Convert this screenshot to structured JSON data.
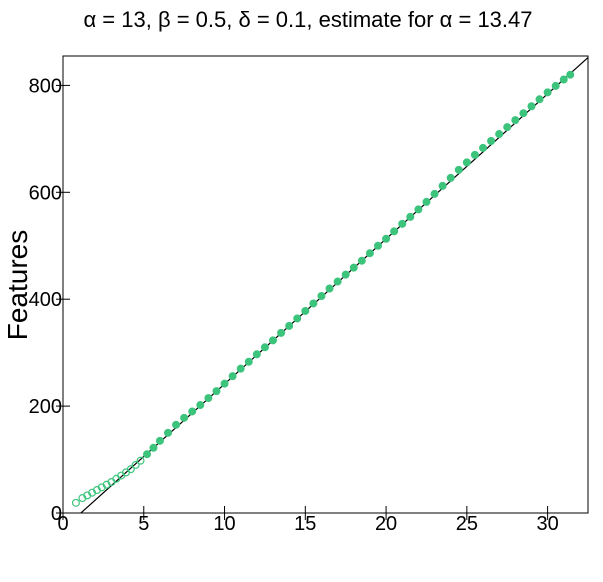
{
  "chart_data": {
    "type": "scatter",
    "title": "α = 13, β = 0.5, δ = 0.1, estimate for α = 13.47",
    "xlabel": "",
    "ylabel": "Features",
    "xlim": [
      0,
      32.5
    ],
    "ylim": [
      0,
      855
    ],
    "x_ticks": [
      0,
      5,
      10,
      15,
      20,
      25,
      30
    ],
    "y_ticks": [
      0,
      200,
      400,
      600,
      800
    ],
    "grid": false,
    "legend": "none",
    "point_color": "#3cc47c",
    "line_color": "#000000",
    "reference_line": {
      "x": [
        0,
        32.5
      ],
      "y": [
        -30,
        852
      ]
    },
    "series": [
      {
        "values": [
          [
            0.8,
            19
          ],
          [
            1.2,
            28
          ],
          [
            1.5,
            33
          ],
          [
            1.8,
            38
          ],
          [
            2.1,
            43
          ],
          [
            2.4,
            48
          ],
          [
            2.7,
            53
          ],
          [
            3.0,
            58
          ],
          [
            3.3,
            64
          ],
          [
            3.6,
            70
          ],
          [
            3.9,
            76
          ],
          [
            4.2,
            82
          ],
          [
            4.5,
            90
          ],
          [
            4.8,
            98
          ],
          [
            5.2,
            110
          ],
          [
            5.6,
            122
          ],
          [
            6.0,
            135
          ],
          [
            6.5,
            150
          ],
          [
            7.0,
            165
          ],
          [
            7.5,
            178
          ],
          [
            8.0,
            190
          ],
          [
            8.5,
            202
          ],
          [
            9.0,
            215
          ],
          [
            9.5,
            228
          ],
          [
            10.0,
            242
          ],
          [
            10.5,
            256
          ],
          [
            11.0,
            270
          ],
          [
            11.5,
            283
          ],
          [
            12.0,
            297
          ],
          [
            12.5,
            310
          ],
          [
            13.0,
            323
          ],
          [
            13.5,
            337
          ],
          [
            14.0,
            350
          ],
          [
            14.5,
            364
          ],
          [
            15.0,
            378
          ],
          [
            15.5,
            392
          ],
          [
            16.0,
            406
          ],
          [
            16.5,
            420
          ],
          [
            17.0,
            433
          ],
          [
            17.5,
            446
          ],
          [
            18.0,
            459
          ],
          [
            18.5,
            472
          ],
          [
            19.0,
            486
          ],
          [
            19.5,
            500
          ],
          [
            20.0,
            513
          ],
          [
            20.5,
            527
          ],
          [
            21.0,
            541
          ],
          [
            21.5,
            554
          ],
          [
            22.0,
            568
          ],
          [
            22.5,
            582
          ],
          [
            23.0,
            597
          ],
          [
            23.5,
            612
          ],
          [
            24.0,
            627
          ],
          [
            24.5,
            642
          ],
          [
            25.0,
            656
          ],
          [
            25.5,
            670
          ],
          [
            26.0,
            683
          ],
          [
            26.5,
            696
          ],
          [
            27.0,
            709
          ],
          [
            27.5,
            722
          ],
          [
            28.0,
            735
          ],
          [
            28.5,
            748
          ],
          [
            29.0,
            761
          ],
          [
            29.5,
            774
          ],
          [
            30.0,
            787
          ],
          [
            30.5,
            799
          ],
          [
            31.0,
            811
          ],
          [
            31.4,
            820
          ]
        ]
      }
    ]
  }
}
